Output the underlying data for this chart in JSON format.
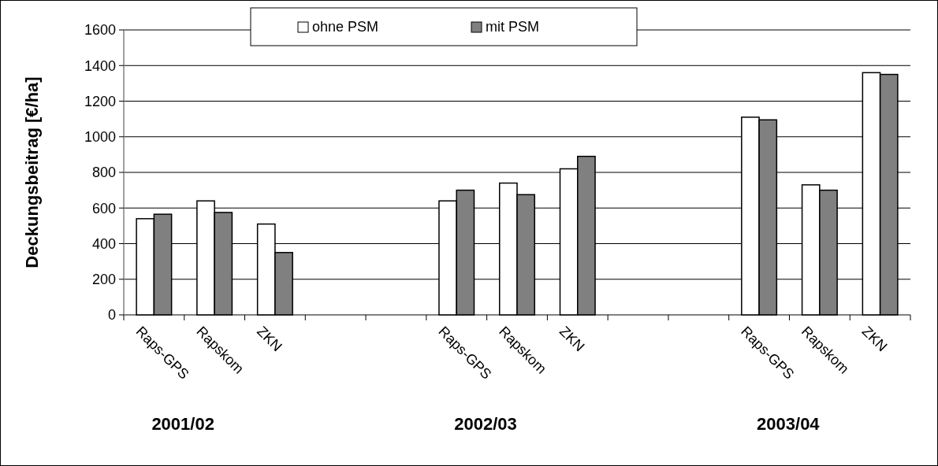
{
  "chart_data": {
    "type": "bar",
    "ylabel": "Deckungsbeitrag [€/ha]",
    "categories": [
      "Raps-GPS",
      "Rapskom",
      "ZKN",
      null,
      null,
      "Raps-GPS",
      "Rapskom",
      "ZKN",
      null,
      null,
      "Raps-GPS",
      "Rapskom",
      "ZKN"
    ],
    "series": [
      {
        "name": "ohne PSM",
        "color": "#ffffff",
        "values": [
          540,
          640,
          510,
          null,
          null,
          640,
          740,
          820,
          null,
          null,
          1110,
          730,
          1360
        ]
      },
      {
        "name": "mit PSM",
        "color": "#808080",
        "values": [
          565,
          575,
          350,
          null,
          null,
          700,
          675,
          890,
          null,
          null,
          1095,
          700,
          1350
        ]
      }
    ],
    "ylim": [
      0,
      1600
    ],
    "yticks": [
      0,
      200,
      400,
      600,
      800,
      1000,
      1200,
      1400,
      1600
    ],
    "grid": "y",
    "legend": "top",
    "annotations": [
      "2001/02",
      "2002/03",
      "2003/04"
    ]
  }
}
